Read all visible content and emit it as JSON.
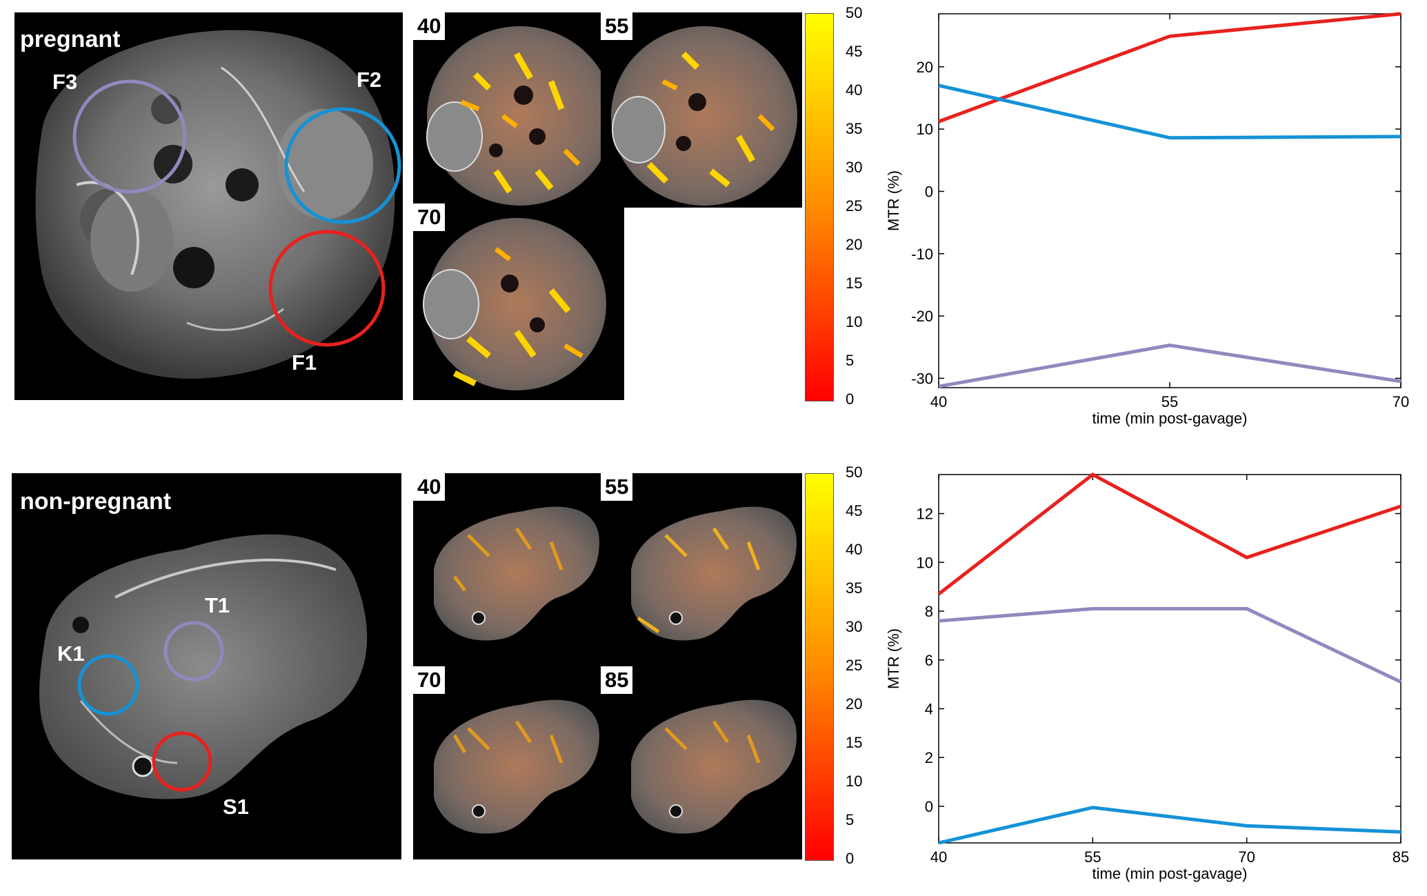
{
  "colors": {
    "f1": "#e8211e",
    "f2": "#1592d6",
    "f3": "#9487bd"
  },
  "top": {
    "title": "pregnant",
    "roi_labels": {
      "f3": "F3",
      "f2": "F2",
      "f1": "F1"
    },
    "time_labels": [
      "40",
      "55",
      "70"
    ],
    "colorbar_ticks": [
      "0",
      "5",
      "10",
      "15",
      "20",
      "25",
      "30",
      "35",
      "40",
      "45",
      "50"
    ]
  },
  "bottom": {
    "title": "non-pregnant",
    "roi_labels": {
      "k1": "K1",
      "t1": "T1",
      "s1": "S1"
    },
    "time_labels": [
      "40",
      "55",
      "70",
      "85"
    ],
    "colorbar_ticks": [
      "0",
      "5",
      "10",
      "15",
      "20",
      "25",
      "30",
      "35",
      "40",
      "45",
      "50"
    ]
  },
  "chart_data": [
    {
      "type": "line",
      "title": "",
      "xlabel": "time (min post-gavage)",
      "ylabel": "MTR (%)",
      "x": [
        40,
        55,
        70
      ],
      "xticks": [
        "40",
        "55",
        "70"
      ],
      "yticks": [
        "-30",
        "-20",
        "-10",
        "0",
        "10",
        "20"
      ],
      "xlim": [
        40,
        70
      ],
      "ylim": [
        -31.5,
        28.5
      ],
      "series": [
        {
          "name": "F1",
          "color": "#e8211e",
          "values": [
            11.2,
            24.9,
            28.5
          ]
        },
        {
          "name": "F2",
          "color": "#1592d6",
          "values": [
            17,
            8.6,
            8.8
          ]
        },
        {
          "name": "F3",
          "color": "#9487bd",
          "values": [
            -31.3,
            -24.7,
            -30.5
          ]
        }
      ]
    },
    {
      "type": "line",
      "title": "",
      "xlabel": "time (min post-gavage)",
      "ylabel": "MTR (%)",
      "x": [
        40,
        55,
        70,
        85
      ],
      "xticks": [
        "40",
        "55",
        "70",
        "85"
      ],
      "yticks": [
        "0",
        "2",
        "4",
        "6",
        "8",
        "10",
        "12"
      ],
      "xlim": [
        40,
        85
      ],
      "ylim": [
        -1.5,
        13.6
      ],
      "series": [
        {
          "name": "S1",
          "color": "#e8211e",
          "values": [
            8.7,
            13.6,
            10.2,
            12.3
          ]
        },
        {
          "name": "T1",
          "color": "#9487bd",
          "values": [
            7.6,
            8.1,
            8.1,
            5.1
          ]
        },
        {
          "name": "K1",
          "color": "#1592d6",
          "values": [
            -1.5,
            -0.05,
            -0.8,
            -1.05
          ]
        }
      ]
    }
  ]
}
